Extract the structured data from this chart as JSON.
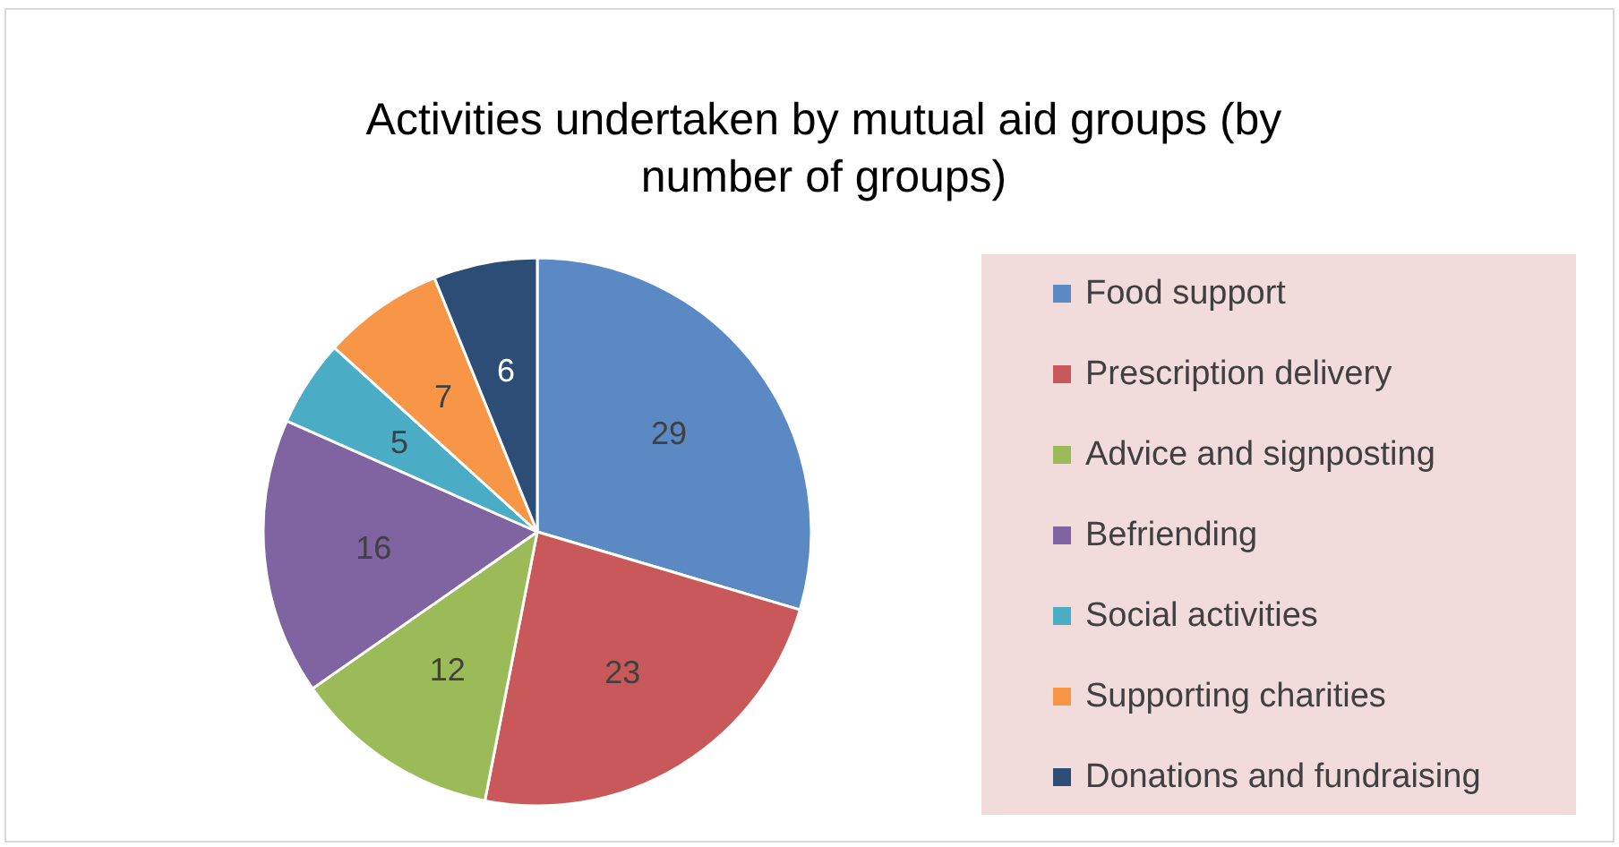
{
  "chart_data": {
    "type": "pie",
    "title": "Activities undertaken by mutual aid groups (by number of groups)",
    "categories": [
      "Food support",
      "Prescription delivery",
      "Advice and signposting",
      "Befriending",
      "Social activities",
      "Supporting charities",
      "Donations and fundraising"
    ],
    "values": [
      29,
      23,
      12,
      16,
      5,
      7,
      6
    ],
    "colors": [
      "#5b89c4",
      "#c9585a",
      "#9bbb59",
      "#8064a2",
      "#4bacc6",
      "#f79646",
      "#2c4d75"
    ],
    "data_labels": true,
    "legend": "right"
  }
}
